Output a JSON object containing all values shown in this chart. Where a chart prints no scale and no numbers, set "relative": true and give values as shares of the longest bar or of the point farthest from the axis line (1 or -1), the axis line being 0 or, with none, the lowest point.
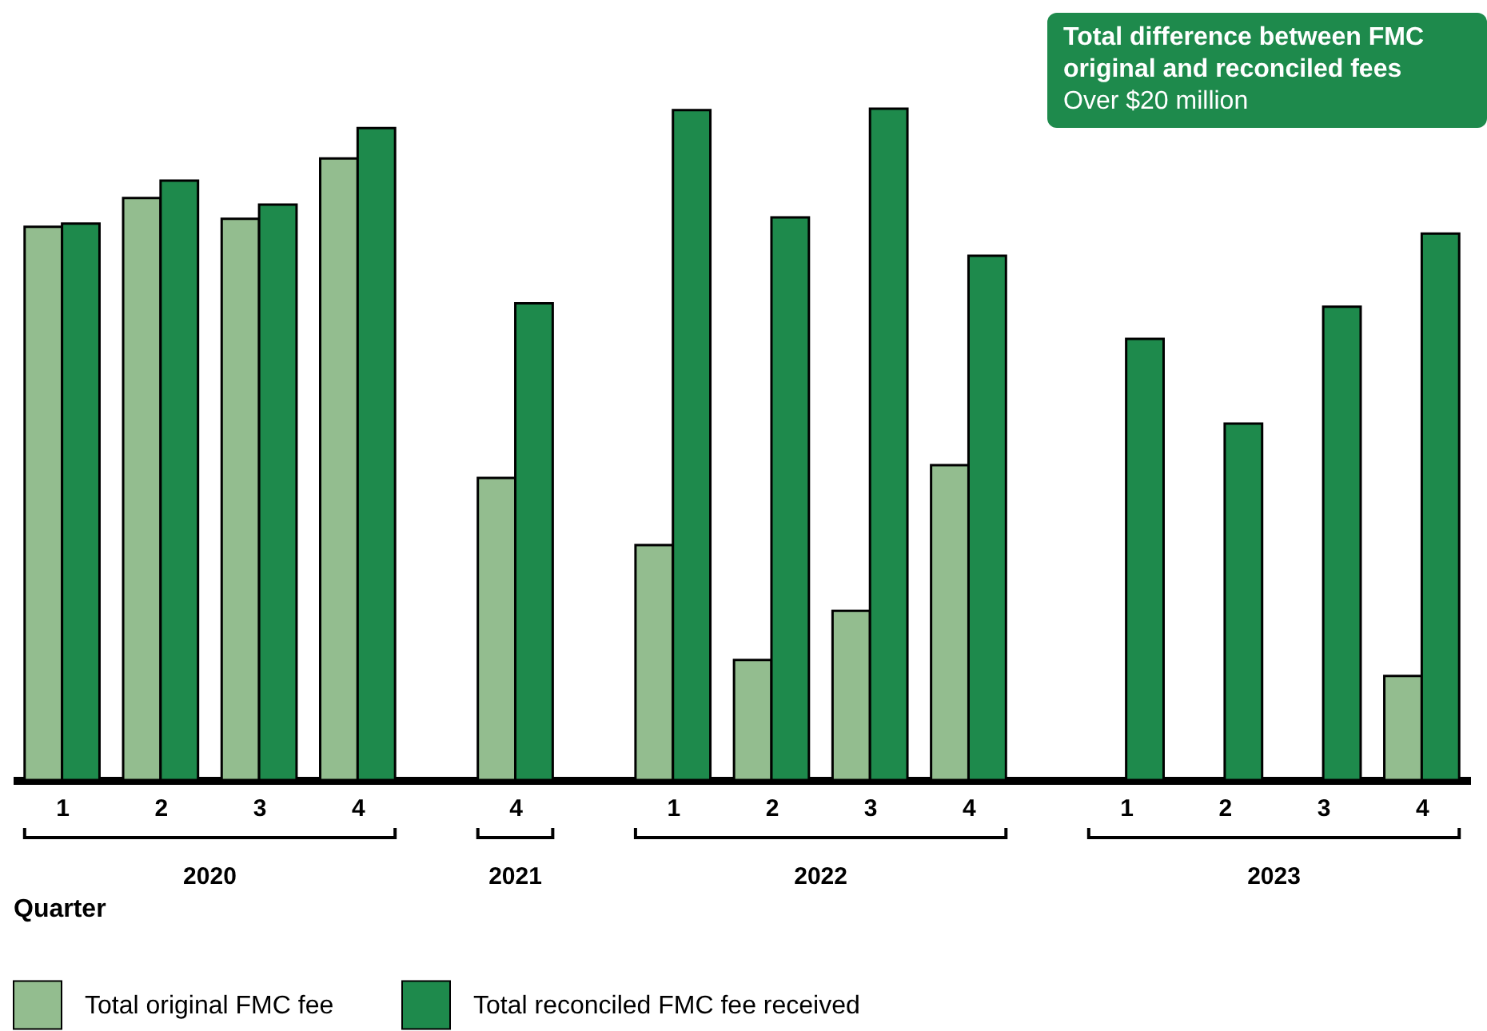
{
  "chart_data": {
    "type": "bar",
    "title": "Total difference between FMC original and reconciled fees",
    "subtitle": "Over $20 million",
    "xlabel": "Quarter",
    "categories": [
      "1",
      "2",
      "3",
      "4",
      "4",
      "1",
      "2",
      "3",
      "4",
      "1",
      "2",
      "3",
      "4"
    ],
    "annotations": [
      "2020",
      "2021",
      "2022",
      "2023"
    ],
    "relative": true,
    "grid": false,
    "legend": "bottom left",
    "series": [
      {
        "name": "Total original FMC fee",
        "color": "#93bd8f",
        "values": [
          0.824,
          0.867,
          0.836,
          0.926,
          0.45,
          0.35,
          0.179,
          0.252,
          0.469,
          null,
          null,
          null,
          0.155
        ]
      },
      {
        "name": "Total reconciled FMC fee received",
        "color": "#1e8a4c",
        "values": [
          0.829,
          0.893,
          0.857,
          0.971,
          0.71,
          0.998,
          0.838,
          1,
          0.781,
          0.657,
          0.531,
          0.705,
          0.814
        ]
      }
    ]
  }
}
